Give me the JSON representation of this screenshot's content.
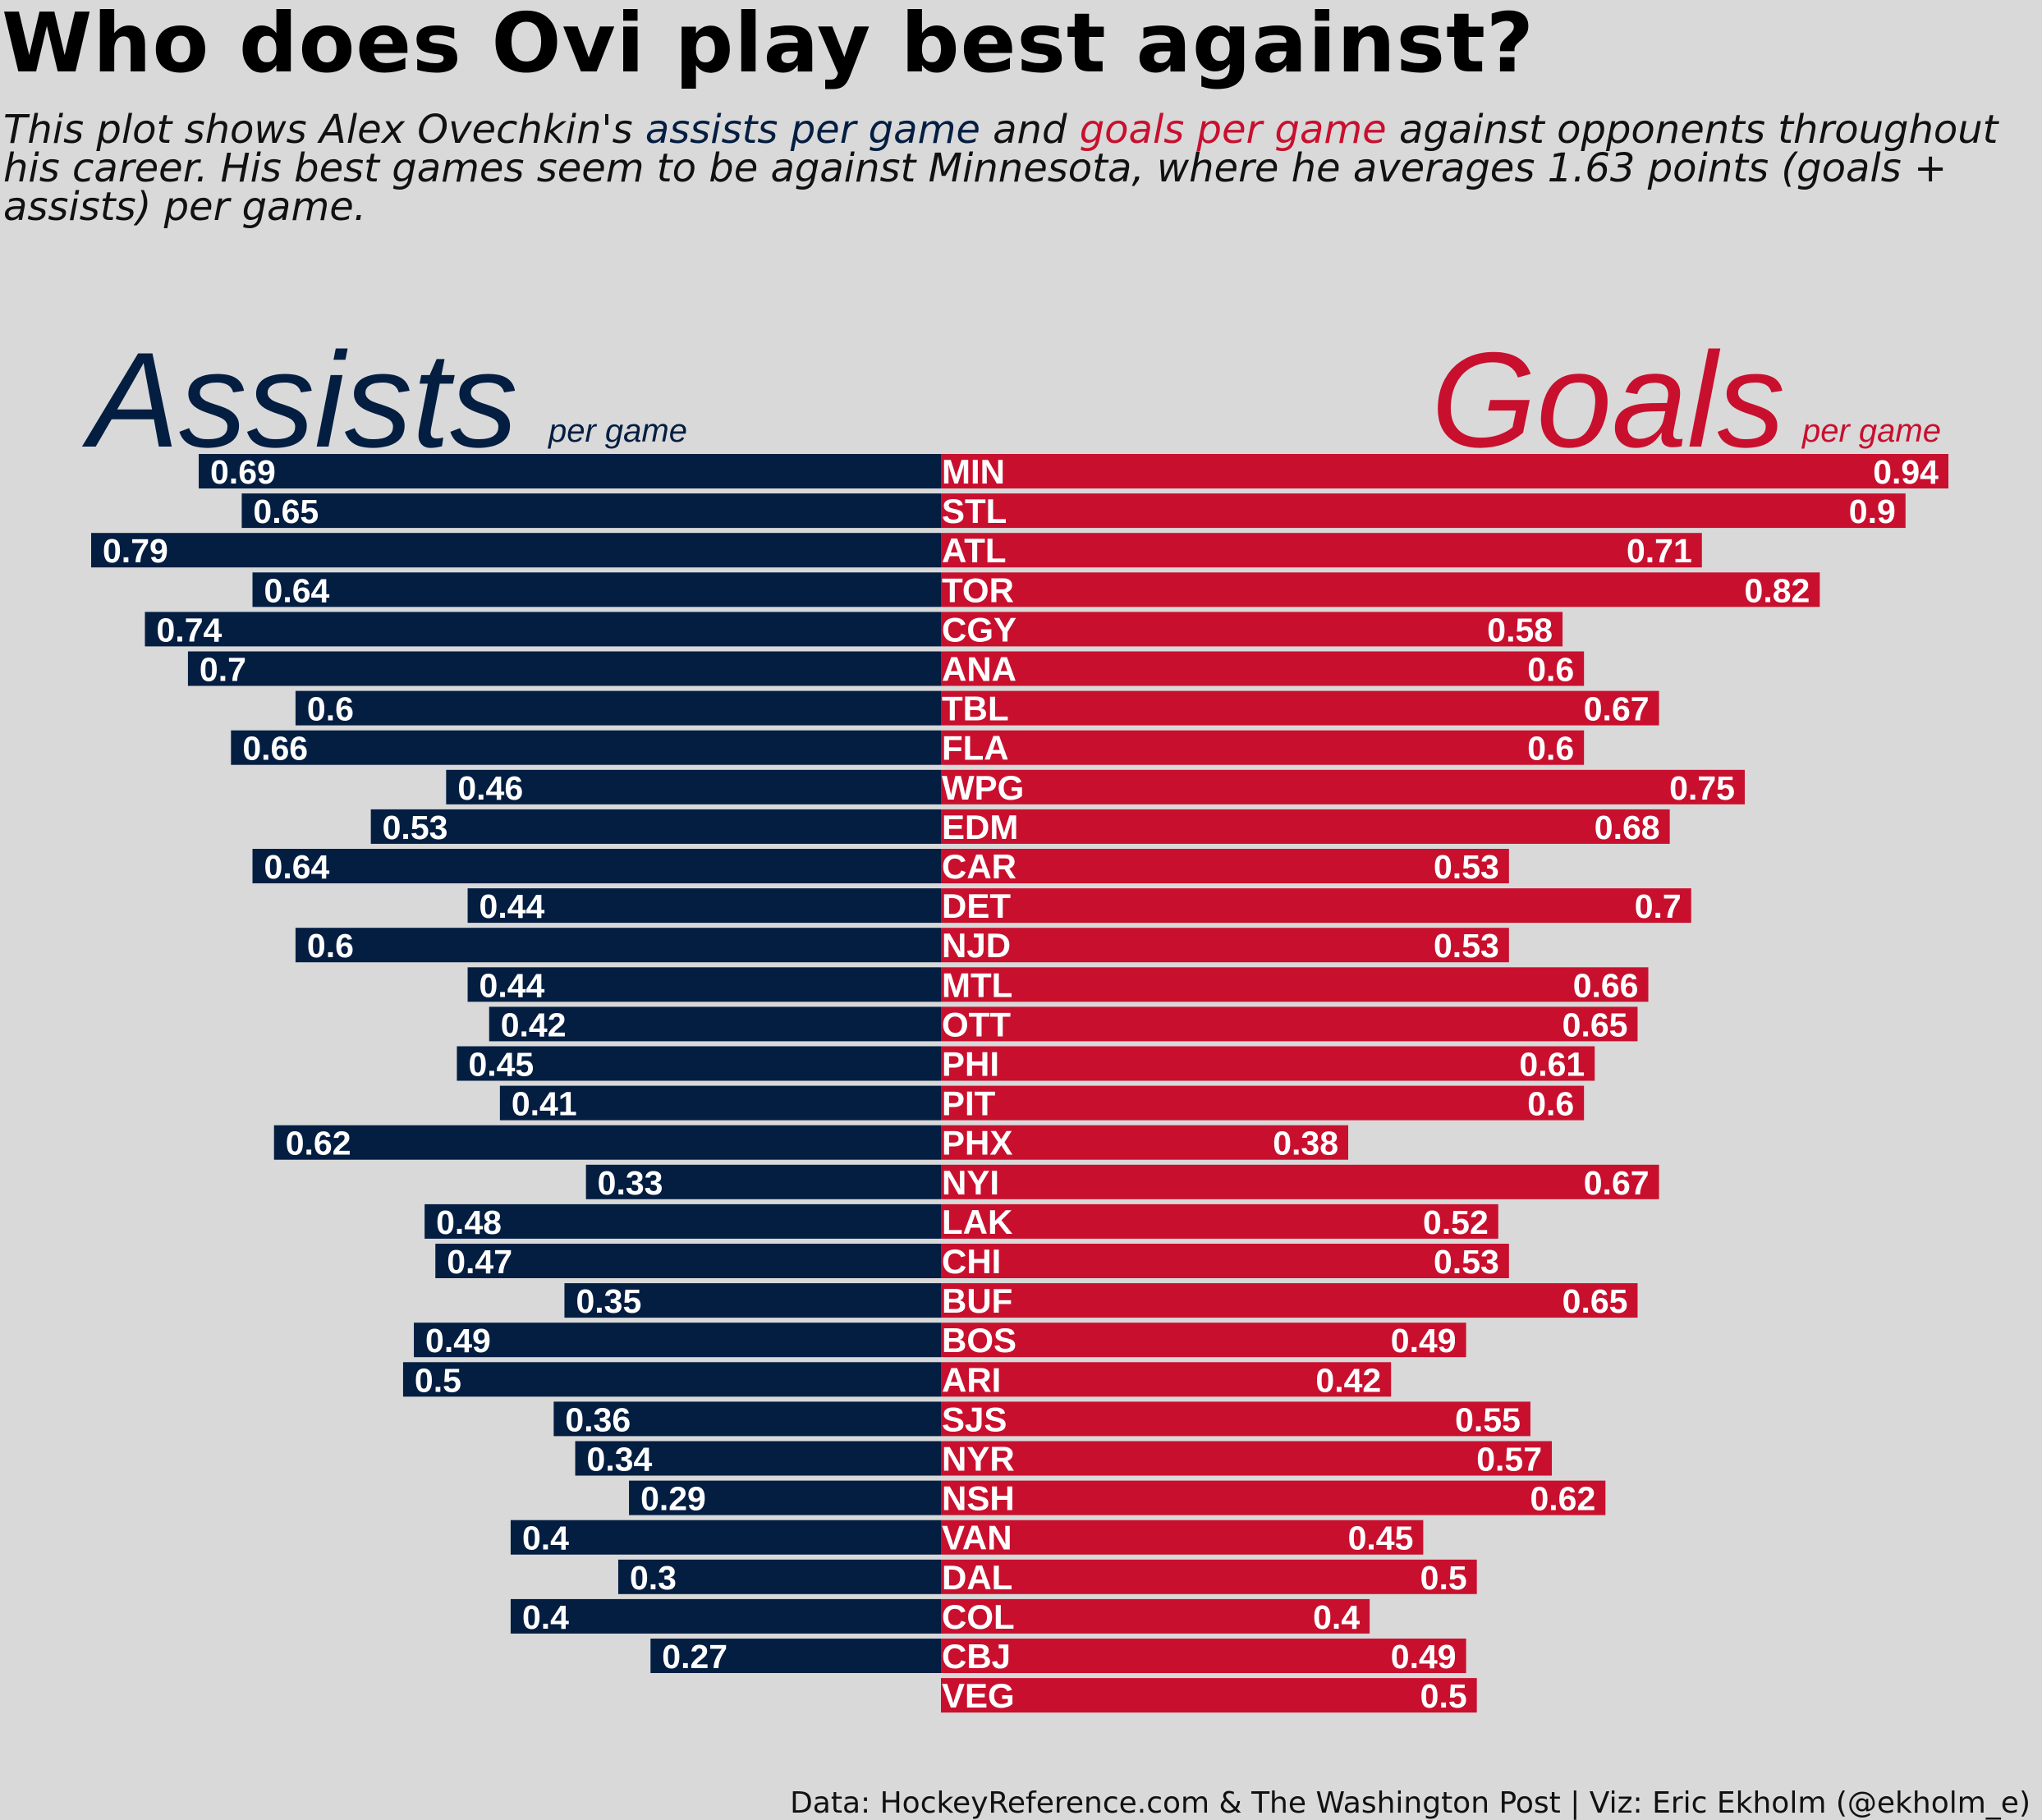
{
  "title": "Who does Ovi play best against?",
  "subtitle": {
    "part1": "This plot shows Alex Ovechkin's ",
    "assists_term": "assists per game",
    "part2": " and ",
    "goals_term": "goals per game",
    "part3": " against opponents throughout his career. His best games seem to be against Minnesota, where he averages 1.63 points (goals + assists) per game."
  },
  "headers": {
    "assists": "Assists",
    "assists_unit": "per game",
    "goals": "Goals",
    "goals_unit": "per game"
  },
  "colors": {
    "assists": "#041e42",
    "goals": "#c8102e",
    "background": "#d9d9d9"
  },
  "caption": "Data: HockeyReference.com & The Washington Post | Viz: Eric Ekholm (@ekholm_e)",
  "chart_data": {
    "type": "bar",
    "orientation": "diverging horizontal",
    "categories": [
      "MIN",
      "STL",
      "ATL",
      "TOR",
      "CGY",
      "ANA",
      "TBL",
      "FLA",
      "WPG",
      "EDM",
      "CAR",
      "DET",
      "NJD",
      "MTL",
      "OTT",
      "PHI",
      "PIT",
      "PHX",
      "NYI",
      "LAK",
      "CHI",
      "BUF",
      "BOS",
      "ARI",
      "SJS",
      "NYR",
      "NSH",
      "VAN",
      "DAL",
      "COL",
      "CBJ",
      "VEG"
    ],
    "series": [
      {
        "name": "Assists",
        "values": [
          0.69,
          0.65,
          0.79,
          0.64,
          0.74,
          0.7,
          0.6,
          0.66,
          0.46,
          0.53,
          0.64,
          0.44,
          0.6,
          0.44,
          0.42,
          0.45,
          0.41,
          0.62,
          0.33,
          0.48,
          0.47,
          0.35,
          0.49,
          0.5,
          0.36,
          0.34,
          0.29,
          0.4,
          0.3,
          0.4,
          0.27,
          null
        ]
      },
      {
        "name": "Goals",
        "values": [
          0.94,
          0.9,
          0.71,
          0.82,
          0.58,
          0.6,
          0.67,
          0.6,
          0.75,
          0.68,
          0.53,
          0.7,
          0.53,
          0.66,
          0.65,
          0.61,
          0.6,
          0.38,
          0.67,
          0.52,
          0.53,
          0.65,
          0.49,
          0.42,
          0.55,
          0.57,
          0.62,
          0.45,
          0.5,
          0.4,
          0.49,
          0.5
        ]
      }
    ],
    "grid": false,
    "legend": "none"
  }
}
